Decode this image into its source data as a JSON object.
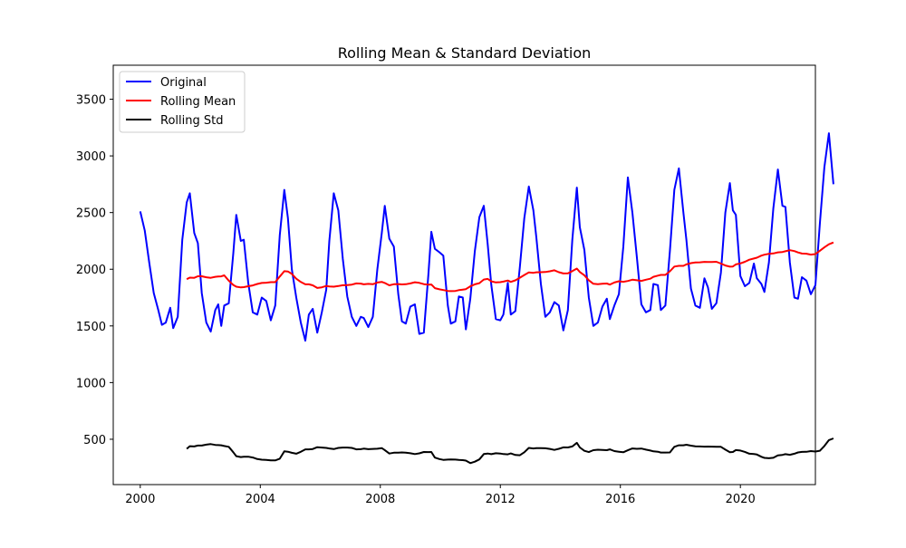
{
  "chart_data": {
    "type": "line",
    "title": "Rolling Mean & Standard Deviation",
    "xlabel": "",
    "ylabel": "",
    "xlim": [
      1999.1,
      2022.5
    ],
    "ylim": [
      100,
      3800
    ],
    "xticks": [
      2000,
      2004,
      2008,
      2012,
      2016,
      2020
    ],
    "xtick_labels": [
      "2000",
      "2004",
      "2008",
      "2012",
      "2016",
      "2020"
    ],
    "yticks": [
      500,
      1000,
      1500,
      2000,
      2500,
      3000,
      3500
    ],
    "ytick_labels": [
      "500",
      "1000",
      "1500",
      "2000",
      "2500",
      "3000",
      "3500"
    ],
    "grid": false,
    "legend_position": "top-left",
    "series": [
      {
        "name": "Original",
        "color": "#0000ff",
        "points": [
          [
            2000.0,
            2510
          ],
          [
            2000.15,
            2340
          ],
          [
            2000.3,
            2060
          ],
          [
            2000.45,
            1790
          ],
          [
            2000.6,
            1640
          ],
          [
            2000.72,
            1510
          ],
          [
            2000.85,
            1530
          ],
          [
            2001.0,
            1660
          ],
          [
            2001.1,
            1480
          ],
          [
            2001.25,
            1580
          ],
          [
            2001.4,
            2260
          ],
          [
            2001.55,
            2590
          ],
          [
            2001.65,
            2670
          ],
          [
            2001.8,
            2320
          ],
          [
            2001.92,
            2230
          ],
          [
            2002.05,
            1790
          ],
          [
            2002.2,
            1530
          ],
          [
            2002.35,
            1450
          ],
          [
            2002.5,
            1640
          ],
          [
            2002.6,
            1690
          ],
          [
            2002.7,
            1500
          ],
          [
            2002.8,
            1680
          ],
          [
            2002.95,
            1700
          ],
          [
            2003.1,
            2140
          ],
          [
            2003.2,
            2480
          ],
          [
            2003.35,
            2250
          ],
          [
            2003.45,
            2260
          ],
          [
            2003.6,
            1880
          ],
          [
            2003.75,
            1620
          ],
          [
            2003.9,
            1600
          ],
          [
            2004.05,
            1750
          ],
          [
            2004.2,
            1720
          ],
          [
            2004.35,
            1550
          ],
          [
            2004.5,
            1680
          ],
          [
            2004.65,
            2300
          ],
          [
            2004.8,
            2700
          ],
          [
            2004.92,
            2450
          ],
          [
            2005.05,
            2000
          ],
          [
            2005.2,
            1750
          ],
          [
            2005.35,
            1530
          ],
          [
            2005.5,
            1370
          ],
          [
            2005.62,
            1600
          ],
          [
            2005.75,
            1650
          ],
          [
            2005.9,
            1440
          ],
          [
            2006.05,
            1620
          ],
          [
            2006.2,
            1820
          ],
          [
            2006.3,
            2250
          ],
          [
            2006.45,
            2670
          ],
          [
            2006.6,
            2520
          ],
          [
            2006.75,
            2090
          ],
          [
            2006.9,
            1760
          ],
          [
            2007.05,
            1580
          ],
          [
            2007.2,
            1500
          ],
          [
            2007.35,
            1580
          ],
          [
            2007.45,
            1570
          ],
          [
            2007.6,
            1490
          ],
          [
            2007.75,
            1580
          ],
          [
            2007.9,
            2000
          ],
          [
            2008.05,
            2320
          ],
          [
            2008.15,
            2560
          ],
          [
            2008.3,
            2270
          ],
          [
            2008.45,
            2200
          ],
          [
            2008.6,
            1780
          ],
          [
            2008.72,
            1540
          ],
          [
            2008.85,
            1520
          ],
          [
            2009.0,
            1670
          ],
          [
            2009.15,
            1690
          ],
          [
            2009.3,
            1430
          ],
          [
            2009.45,
            1440
          ],
          [
            2009.6,
            1950
          ],
          [
            2009.7,
            2330
          ],
          [
            2009.82,
            2180
          ],
          [
            2009.97,
            2150
          ],
          [
            2010.1,
            2120
          ],
          [
            2010.25,
            1680
          ],
          [
            2010.35,
            1520
          ],
          [
            2010.5,
            1540
          ],
          [
            2010.62,
            1760
          ],
          [
            2010.75,
            1750
          ],
          [
            2010.85,
            1470
          ],
          [
            2011.0,
            1740
          ],
          [
            2011.15,
            2160
          ],
          [
            2011.3,
            2460
          ],
          [
            2011.45,
            2560
          ],
          [
            2011.58,
            2220
          ],
          [
            2011.7,
            1860
          ],
          [
            2011.85,
            1560
          ],
          [
            2012.0,
            1550
          ],
          [
            2012.1,
            1600
          ],
          [
            2012.25,
            1880
          ],
          [
            2012.35,
            1600
          ],
          [
            2012.5,
            1630
          ],
          [
            2012.65,
            2020
          ],
          [
            2012.8,
            2450
          ],
          [
            2012.95,
            2730
          ],
          [
            2013.1,
            2520
          ],
          [
            2013.2,
            2280
          ],
          [
            2013.35,
            1870
          ],
          [
            2013.5,
            1580
          ],
          [
            2013.65,
            1620
          ],
          [
            2013.8,
            1710
          ],
          [
            2013.95,
            1680
          ],
          [
            2014.1,
            1460
          ],
          [
            2014.25,
            1640
          ],
          [
            2014.4,
            2260
          ],
          [
            2014.55,
            2720
          ],
          [
            2014.65,
            2370
          ],
          [
            2014.8,
            2170
          ],
          [
            2014.95,
            1750
          ],
          [
            2015.1,
            1500
          ],
          [
            2015.25,
            1530
          ],
          [
            2015.4,
            1670
          ],
          [
            2015.55,
            1740
          ],
          [
            2015.65,
            1560
          ],
          [
            2015.8,
            1680
          ],
          [
            2015.95,
            1780
          ],
          [
            2016.1,
            2200
          ],
          [
            2016.25,
            2810
          ],
          [
            2016.4,
            2500
          ],
          [
            2016.55,
            2110
          ],
          [
            2016.7,
            1690
          ],
          [
            2016.85,
            1620
          ],
          [
            2017.0,
            1640
          ],
          [
            2017.1,
            1870
          ],
          [
            2017.25,
            1860
          ],
          [
            2017.35,
            1640
          ],
          [
            2017.5,
            1680
          ],
          [
            2017.65,
            2160
          ],
          [
            2017.8,
            2700
          ],
          [
            2017.95,
            2890
          ],
          [
            2018.1,
            2500
          ],
          [
            2018.2,
            2260
          ],
          [
            2018.35,
            1830
          ],
          [
            2018.5,
            1680
          ],
          [
            2018.65,
            1660
          ],
          [
            2018.8,
            1920
          ],
          [
            2018.92,
            1840
          ],
          [
            2019.05,
            1650
          ],
          [
            2019.2,
            1700
          ],
          [
            2019.35,
            1970
          ],
          [
            2019.5,
            2500
          ],
          [
            2019.65,
            2760
          ],
          [
            2019.75,
            2520
          ],
          [
            2019.85,
            2480
          ],
          [
            2020.0,
            1940
          ],
          [
            2020.15,
            1850
          ],
          [
            2020.3,
            1880
          ],
          [
            2020.45,
            2050
          ],
          [
            2020.55,
            1920
          ],
          [
            2020.7,
            1870
          ],
          [
            2020.8,
            1800
          ],
          [
            2020.95,
            2060
          ],
          [
            2021.1,
            2540
          ],
          [
            2021.25,
            2880
          ],
          [
            2021.4,
            2560
          ],
          [
            2021.5,
            2550
          ],
          [
            2021.65,
            2060
          ],
          [
            2021.8,
            1750
          ],
          [
            2021.92,
            1740
          ],
          [
            2022.05,
            1930
          ],
          [
            2022.2,
            1900
          ],
          [
            2022.35,
            1780
          ],
          [
            2022.5,
            1860
          ],
          [
            2022.65,
            2410
          ],
          [
            2022.8,
            2900
          ],
          [
            2022.95,
            3200
          ],
          [
            2023.1,
            2750
          ]
        ]
      },
      {
        "name": "Rolling Mean",
        "color": "#ff0000",
        "points": []
      },
      {
        "name": "Rolling Std",
        "color": "#000000",
        "points": []
      }
    ]
  }
}
